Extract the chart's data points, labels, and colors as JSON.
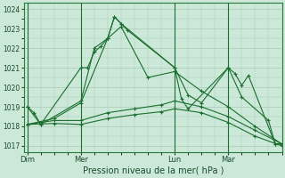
{
  "xlabel": "Pression niveau de la mer( hPa )",
  "background_color": "#cce8d8",
  "plot_bg_color": "#cce8d8",
  "grid_color": "#aaccb8",
  "line_color": "#1a6e2e",
  "ylim": [
    1016.7,
    1024.3
  ],
  "yticks": [
    1017,
    1018,
    1019,
    1020,
    1021,
    1022,
    1023,
    1024
  ],
  "day_labels": [
    "Dim",
    "Mer",
    "Lun",
    "Mar"
  ],
  "day_positions": [
    0,
    8,
    22,
    30
  ],
  "xlim": [
    -0.5,
    38
  ],
  "series": {
    "line1": {
      "x": [
        0,
        1,
        2,
        8,
        9,
        10,
        11,
        12,
        13,
        14,
        15,
        22,
        23,
        24,
        30,
        31,
        32,
        33,
        37,
        38
      ],
      "y": [
        1019.0,
        1018.7,
        1018.1,
        1021.0,
        1021.0,
        1021.8,
        1022.1,
        1022.5,
        1023.6,
        1023.25,
        1022.9,
        1021.0,
        1019.4,
        1018.9,
        1021.0,
        1020.7,
        1020.1,
        1020.6,
        1017.1,
        1017.1
      ]
    },
    "line2": {
      "x": [
        0,
        2,
        8,
        10,
        12,
        13,
        14,
        22,
        24,
        26,
        30,
        32,
        36,
        37,
        38
      ],
      "y": [
        1019.0,
        1018.1,
        1019.3,
        1022.0,
        1022.5,
        1023.6,
        1023.25,
        1021.0,
        1019.6,
        1019.2,
        1021.0,
        1019.5,
        1018.3,
        1017.1,
        1017.1
      ]
    },
    "line3": {
      "x": [
        0,
        4,
        8,
        12,
        14,
        18,
        22,
        26,
        30,
        34,
        38
      ],
      "y": [
        1018.1,
        1018.4,
        1019.2,
        1022.5,
        1023.1,
        1020.5,
        1020.8,
        1019.8,
        1019.0,
        1018.0,
        1017.1
      ]
    },
    "line4": {
      "x": [
        0,
        4,
        8,
        12,
        16,
        20,
        22,
        26,
        30,
        34,
        38
      ],
      "y": [
        1018.1,
        1018.3,
        1018.3,
        1018.7,
        1018.9,
        1019.1,
        1019.3,
        1019.0,
        1018.5,
        1017.8,
        1017.1
      ]
    },
    "line5": {
      "x": [
        0,
        4,
        8,
        12,
        16,
        20,
        22,
        26,
        30,
        34,
        38
      ],
      "y": [
        1018.1,
        1018.15,
        1018.1,
        1018.4,
        1018.6,
        1018.75,
        1018.9,
        1018.7,
        1018.2,
        1017.5,
        1017.0
      ]
    }
  }
}
